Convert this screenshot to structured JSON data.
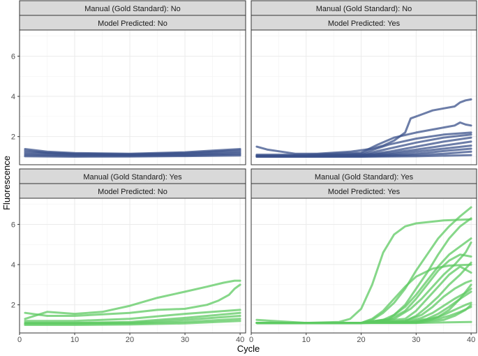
{
  "chart_data": {
    "type": "line",
    "xlabel": "Cycle",
    "ylabel": "Fluorescence",
    "xlim": [
      0,
      41
    ],
    "ylim": [
      0.6,
      7.3
    ],
    "x_ticks": [
      0,
      10,
      20,
      30,
      40
    ],
    "y_ticks": [
      2,
      4,
      6
    ],
    "grid": true,
    "colors": {
      "predicted_no_manual_no": "#3b528b",
      "manual_yes": "#5ec962",
      "strip_fill": "#d9d9d9",
      "panel_border": "#333333"
    },
    "panels": [
      {
        "strip_top": "Manual (Gold Standard): No",
        "strip_bottom": "Model Predicted: No",
        "color": "#3b528b",
        "curves": [
          {
            "name": "",
            "x": [
              1,
              5,
              10,
              20,
              30,
              35,
              40
            ],
            "y": [
              1.38,
              1.25,
              1.18,
              1.15,
              1.22,
              1.3,
              1.38
            ]
          },
          {
            "name": "",
            "x": [
              1,
              5,
              10,
              20,
              30,
              35,
              40
            ],
            "y": [
              1.3,
              1.2,
              1.15,
              1.12,
              1.18,
              1.25,
              1.32
            ]
          },
          {
            "name": "",
            "x": [
              1,
              10,
              20,
              30,
              40
            ],
            "y": [
              1.22,
              1.12,
              1.1,
              1.15,
              1.25
            ]
          },
          {
            "name": "",
            "x": [
              1,
              10,
              20,
              30,
              40
            ],
            "y": [
              1.15,
              1.08,
              1.07,
              1.1,
              1.18
            ]
          },
          {
            "name": "",
            "x": [
              1,
              10,
              20,
              30,
              40
            ],
            "y": [
              1.08,
              1.04,
              1.04,
              1.06,
              1.12
            ]
          },
          {
            "name": "",
            "x": [
              1,
              10,
              20,
              30,
              40
            ],
            "y": [
              1.02,
              1.0,
              1.01,
              1.03,
              1.06
            ]
          }
        ]
      },
      {
        "strip_top": "Manual (Gold Standard): No",
        "strip_bottom": "Model Predicted: Yes",
        "color": "#3b528b",
        "curves": [
          {
            "name": "",
            "x": [
              1,
              3,
              8,
              12,
              18,
              22,
              24,
              26,
              28,
              29,
              31,
              33,
              35,
              37,
              38,
              39,
              40
            ],
            "y": [
              1.5,
              1.35,
              1.15,
              1.15,
              1.25,
              1.4,
              1.55,
              1.8,
              2.2,
              2.9,
              3.1,
              3.3,
              3.4,
              3.5,
              3.7,
              3.8,
              3.85
            ]
          },
          {
            "name": "",
            "x": [
              1,
              10,
              20,
              23,
              26,
              30,
              34,
              37,
              38,
              39,
              40
            ],
            "y": [
              1.1,
              1.1,
              1.2,
              1.6,
              1.95,
              2.2,
              2.4,
              2.55,
              2.7,
              2.6,
              2.55
            ]
          },
          {
            "name": "",
            "x": [
              1,
              10,
              20,
              25,
              30,
              35,
              40
            ],
            "y": [
              1.05,
              1.05,
              1.15,
              1.6,
              1.9,
              2.1,
              2.2
            ]
          },
          {
            "name": "",
            "x": [
              1,
              10,
              20,
              25,
              30,
              35,
              40
            ],
            "y": [
              1.05,
              1.05,
              1.1,
              1.4,
              1.7,
              1.95,
              2.1
            ]
          },
          {
            "name": "",
            "x": [
              1,
              10,
              20,
              25,
              30,
              35,
              40
            ],
            "y": [
              1.05,
              1.05,
              1.08,
              1.25,
              1.5,
              1.75,
              1.95
            ]
          },
          {
            "name": "",
            "x": [
              1,
              10,
              20,
              25,
              30,
              35,
              40
            ],
            "y": [
              1.05,
              1.05,
              1.06,
              1.18,
              1.35,
              1.55,
              1.75
            ]
          },
          {
            "name": "",
            "x": [
              1,
              10,
              20,
              25,
              30,
              35,
              40
            ],
            "y": [
              1.05,
              1.04,
              1.05,
              1.12,
              1.25,
              1.4,
              1.55
            ]
          },
          {
            "name": "",
            "x": [
              1,
              10,
              20,
              25,
              30,
              35,
              40
            ],
            "y": [
              1.02,
              1.02,
              1.03,
              1.08,
              1.15,
              1.28,
              1.4
            ]
          },
          {
            "name": "",
            "x": [
              1,
              10,
              20,
              25,
              30,
              35,
              40
            ],
            "y": [
              1.0,
              1.0,
              1.01,
              1.04,
              1.08,
              1.15,
              1.25
            ]
          },
          {
            "name": "",
            "x": [
              1,
              10,
              20,
              30,
              40
            ],
            "y": [
              1.0,
              1.0,
              1.0,
              1.02,
              1.08
            ]
          }
        ]
      },
      {
        "strip_top": "Manual (Gold Standard): Yes",
        "strip_bottom": "Model Predicted: No",
        "color": "#5ec962",
        "curves": [
          {
            "name": "",
            "x": [
              1,
              5,
              10,
              15,
              20,
              25,
              30,
              34,
              37,
              39,
              40
            ],
            "y": [
              1.3,
              1.65,
              1.55,
              1.65,
              1.95,
              2.35,
              2.65,
              2.9,
              3.1,
              3.2,
              3.2
            ]
          },
          {
            "name": "",
            "x": [
              1,
              5,
              10,
              20,
              25,
              30,
              34,
              36,
              38,
              39,
              40
            ],
            "y": [
              1.6,
              1.45,
              1.45,
              1.6,
              1.75,
              1.8,
              2.0,
              2.2,
              2.5,
              2.8,
              3.0
            ]
          },
          {
            "name": "",
            "x": [
              1,
              10,
              20,
              30,
              40
            ],
            "y": [
              1.2,
              1.2,
              1.3,
              1.55,
              1.75
            ]
          },
          {
            "name": "",
            "x": [
              1,
              10,
              20,
              30,
              40
            ],
            "y": [
              1.1,
              1.1,
              1.15,
              1.35,
              1.6
            ]
          },
          {
            "name": "",
            "x": [
              1,
              10,
              20,
              30,
              40
            ],
            "y": [
              1.1,
              1.1,
              1.1,
              1.25,
              1.45
            ]
          },
          {
            "name": "",
            "x": [
              1,
              10,
              20,
              30,
              40
            ],
            "y": [
              1.05,
              1.05,
              1.08,
              1.15,
              1.3
            ]
          },
          {
            "name": "",
            "x": [
              1,
              10,
              20,
              30,
              40
            ],
            "y": [
              1.0,
              1.0,
              1.02,
              1.08,
              1.2
            ]
          }
        ]
      },
      {
        "strip_top": "Manual (Gold Standard): Yes",
        "strip_bottom": "Model Predicted: Yes",
        "color": "#5ec962",
        "curves": [
          {
            "name": "",
            "x": [
              1,
              10,
              16,
              18,
              20,
              22,
              24,
              26,
              28,
              30,
              35,
              40
            ],
            "y": [
              1.25,
              1.1,
              1.15,
              1.3,
              1.8,
              3.0,
              4.6,
              5.5,
              5.9,
              6.05,
              6.2,
              6.25
            ]
          },
          {
            "name": "",
            "x": [
              1,
              10,
              20,
              22,
              24,
              26,
              28,
              30,
              32,
              34,
              36,
              38,
              40
            ],
            "y": [
              1.1,
              1.1,
              1.1,
              1.25,
              1.6,
              2.1,
              2.8,
              3.7,
              4.5,
              5.3,
              5.9,
              6.4,
              6.85
            ]
          },
          {
            "name": "",
            "x": [
              1,
              10,
              20,
              24,
              26,
              28,
              30,
              32,
              34,
              36,
              38,
              40
            ],
            "y": [
              1.1,
              1.1,
              1.1,
              1.25,
              1.5,
              2.0,
              2.8,
              3.6,
              4.5,
              5.3,
              5.9,
              6.3
            ]
          },
          {
            "name": "",
            "x": [
              1,
              10,
              20,
              25,
              28,
              30,
              32,
              34,
              36,
              38,
              40
            ],
            "y": [
              1.1,
              1.1,
              1.1,
              1.3,
              1.9,
              2.5,
              3.2,
              3.9,
              4.5,
              4.9,
              5.3
            ]
          },
          {
            "name": "",
            "x": [
              1,
              10,
              20,
              22,
              24,
              26,
              28,
              30,
              33,
              36,
              40
            ],
            "y": [
              1.1,
              1.1,
              1.1,
              1.3,
              1.7,
              2.3,
              2.9,
              3.4,
              3.8,
              3.95,
              4.0
            ]
          },
          {
            "name": "",
            "x": [
              1,
              10,
              20,
              25,
              28,
              30,
              32,
              34,
              36,
              38,
              40
            ],
            "y": [
              1.1,
              1.1,
              1.1,
              1.25,
              1.7,
              2.3,
              3.0,
              3.7,
              4.2,
              4.5,
              4.4
            ]
          },
          {
            "name": "",
            "x": [
              1,
              10,
              20,
              26,
              29,
              31,
              33,
              35,
              37,
              39,
              40
            ],
            "y": [
              1.1,
              1.1,
              1.1,
              1.3,
              1.8,
              2.3,
              2.9,
              3.5,
              4.0,
              4.6,
              5.1
            ]
          },
          {
            "name": "",
            "x": [
              1,
              10,
              20,
              28,
              30,
              32,
              34,
              36,
              38,
              40
            ],
            "y": [
              1.1,
              1.1,
              1.1,
              1.3,
              1.7,
              2.3,
              2.9,
              3.5,
              3.9,
              3.6
            ]
          },
          {
            "name": "",
            "x": [
              1,
              10,
              20,
              28,
              30,
              32,
              34,
              36,
              38,
              40
            ],
            "y": [
              1.1,
              1.1,
              1.1,
              1.2,
              1.45,
              1.9,
              2.4,
              3.0,
              3.5,
              4.1
            ]
          },
          {
            "name": "",
            "x": [
              1,
              10,
              20,
              28,
              31,
              33,
              35,
              37,
              39,
              40
            ],
            "y": [
              1.1,
              1.1,
              1.1,
              1.2,
              1.5,
              1.9,
              2.4,
              2.8,
              3.1,
              3.2
            ]
          },
          {
            "name": "",
            "x": [
              1,
              10,
              20,
              28,
              31,
              33,
              35,
              37,
              39,
              40
            ],
            "y": [
              1.1,
              1.1,
              1.1,
              1.15,
              1.35,
              1.6,
              1.95,
              2.3,
              2.6,
              2.8
            ]
          },
          {
            "name": "",
            "x": [
              1,
              10,
              20,
              28,
              32,
              34,
              36,
              38,
              40
            ],
            "y": [
              1.1,
              1.1,
              1.1,
              1.12,
              1.3,
              1.55,
              1.9,
              2.3,
              2.65
            ]
          },
          {
            "name": "",
            "x": [
              1,
              10,
              20,
              29,
              33,
              35,
              37,
              39,
              40
            ],
            "y": [
              1.1,
              1.1,
              1.1,
              1.12,
              1.3,
              1.5,
              1.75,
              2.0,
              2.1
            ]
          },
          {
            "name": "",
            "x": [
              1,
              10,
              20,
              30,
              34,
              36,
              38,
              40
            ],
            "y": [
              1.1,
              1.1,
              1.1,
              1.12,
              1.3,
              1.45,
              1.65,
              1.9
            ]
          },
          {
            "name": "",
            "x": [
              1,
              10,
              20,
              30,
              34,
              36,
              38,
              40
            ],
            "y": [
              1.1,
              1.1,
              1.1,
              1.15,
              1.4,
              1.75,
              2.3,
              3.0
            ]
          },
          {
            "name": "",
            "x": [
              1,
              10,
              20,
              30,
              35,
              37,
              39,
              40
            ],
            "y": [
              1.1,
              1.1,
              1.1,
              1.1,
              1.25,
              1.45,
              1.75,
              2.0
            ]
          },
          {
            "name": "",
            "x": [
              1,
              10,
              20,
              30,
              40
            ],
            "y": [
              1.1,
              1.1,
              1.1,
              1.1,
              1.15
            ]
          }
        ]
      }
    ]
  }
}
